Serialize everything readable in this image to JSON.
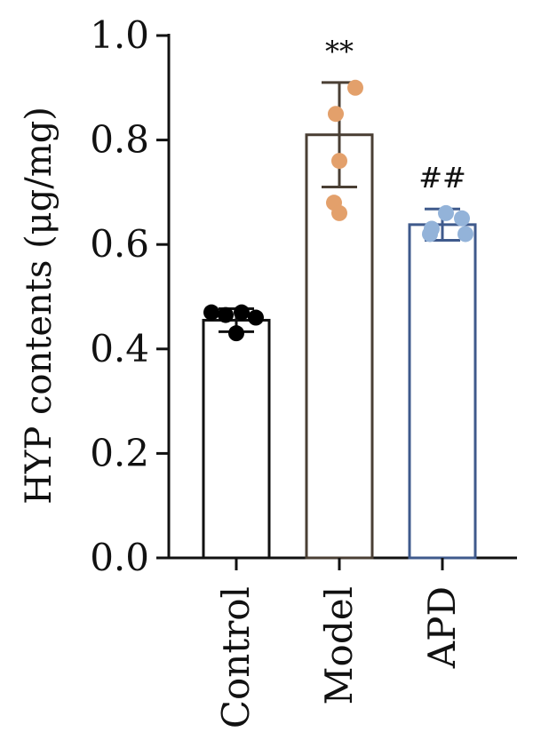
{
  "chart_data": {
    "type": "bar",
    "title": "",
    "xlabel": "",
    "ylabel": "HYP contents (μg/mg)",
    "ylim": [
      0,
      1.0
    ],
    "yticks": [
      "0.0",
      "0.2",
      "0.4",
      "0.6",
      "0.8",
      "1.0"
    ],
    "grid": false,
    "categories": [
      "Control",
      "Model",
      "APD"
    ],
    "values": [
      0.455,
      0.81,
      0.638
    ],
    "errors": [
      0.022,
      0.1,
      0.03
    ],
    "points": [
      [
        0.47,
        0.465,
        0.47,
        0.46,
        0.43
      ],
      [
        0.9,
        0.85,
        0.76,
        0.68,
        0.66
      ],
      [
        0.66,
        0.65,
        0.63,
        0.62,
        0.62
      ]
    ],
    "significance": [
      "",
      "**",
      "##"
    ],
    "colors": {
      "bar_edges": [
        "#111111",
        "#4a3f34",
        "#3f5a8c"
      ],
      "points": [
        "#000000",
        "#e3a06b",
        "#93b3d9"
      ],
      "axis": "#111111"
    }
  }
}
